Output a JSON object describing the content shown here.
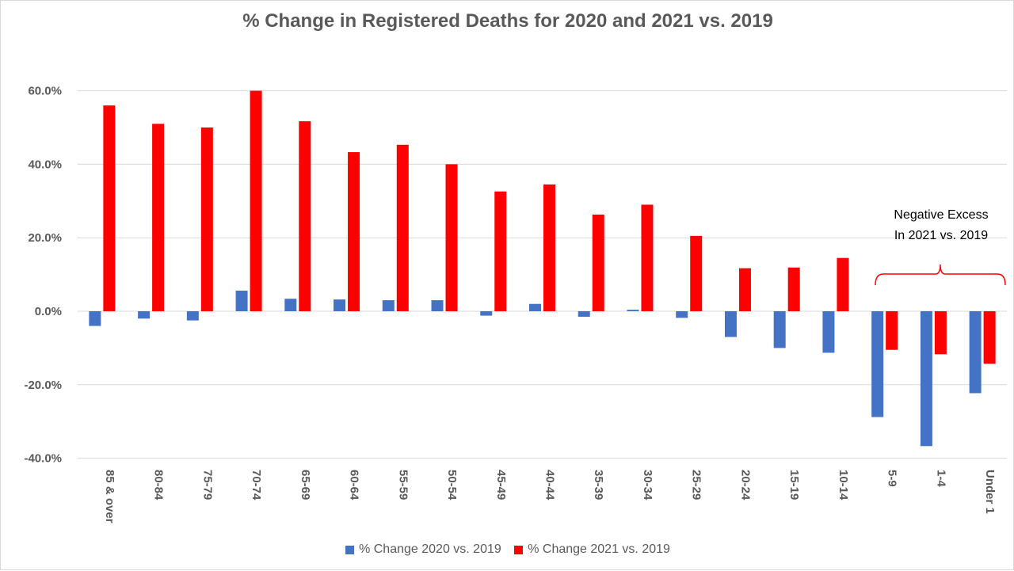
{
  "chart_data": {
    "type": "bar",
    "title": "% Change in Registered Deaths for 2020 and 2021 vs. 2019",
    "categories": [
      "85 & over",
      "80-84",
      "75-79",
      "70-74",
      "65-69",
      "60-64",
      "55-59",
      "50-54",
      "45-49",
      "40-44",
      "35-39",
      "30-34",
      "25-29",
      "20-24",
      "15-19",
      "10-14",
      "5-9",
      "1-4",
      "Under 1"
    ],
    "series": [
      {
        "name": "% Change 2020 vs. 2019",
        "color": "#4472c4",
        "values": [
          -4.0,
          -2.0,
          -2.5,
          5.6,
          3.4,
          3.2,
          3.0,
          3.0,
          -1.2,
          2.0,
          -1.5,
          0.4,
          -1.8,
          -7.0,
          -10.0,
          -11.3,
          -28.8,
          -36.7,
          -22.3
        ]
      },
      {
        "name": "% Change 2021 vs. 2019",
        "color": "#ff0000",
        "values": [
          56.0,
          51.0,
          50.0,
          60.0,
          51.7,
          43.3,
          45.3,
          40.0,
          32.6,
          34.5,
          26.3,
          29.0,
          20.5,
          11.7,
          11.9,
          14.5,
          -10.5,
          -11.7,
          -14.3
        ]
      }
    ],
    "yticks": [
      "60.0%",
      "40.0%",
      "20.0%",
      "0.0%",
      "-20.0%",
      "-40.0%"
    ],
    "ylim": [
      -40,
      60
    ],
    "grid": true,
    "legend_position": "bottom",
    "annotation": {
      "lines": [
        "Negative Excess",
        "In 2021 vs. 2019"
      ],
      "bracket_color": "#ff0000"
    }
  }
}
